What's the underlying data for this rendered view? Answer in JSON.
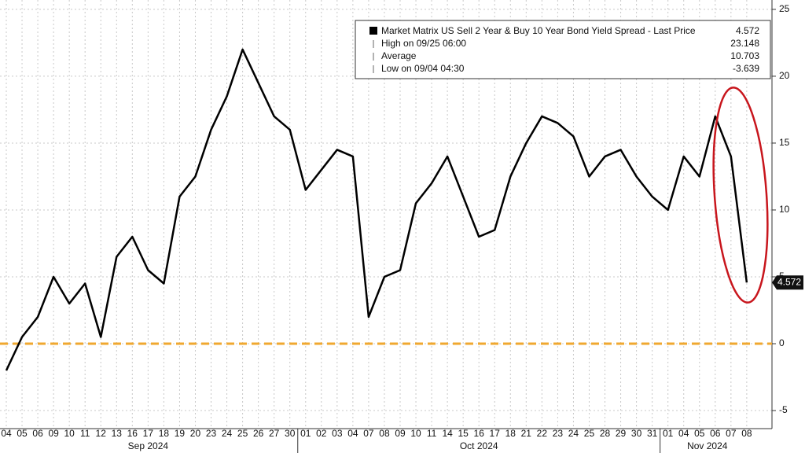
{
  "chart_data": {
    "type": "line",
    "series": [
      {
        "name": "Market Matrix US Sell 2 Year & Buy 10 Year Bond Yield Spread - Last Price",
        "color": "#000000",
        "values": [
          -2,
          0.5,
          2,
          5,
          3,
          4.5,
          0.5,
          6.5,
          8,
          5.5,
          4.5,
          11,
          12.5,
          16,
          18.5,
          22,
          19.5,
          17,
          16,
          11.5,
          13,
          14.5,
          14,
          2,
          5,
          5.5,
          10.5,
          12,
          14,
          11,
          8,
          8.5,
          12.5,
          15,
          17,
          16.5,
          15.5,
          12.5,
          14,
          14.5,
          12.5,
          11,
          10,
          14,
          12.5,
          17,
          14,
          4.572
        ]
      }
    ],
    "categories": [
      "04",
      "05",
      "06",
      "09",
      "10",
      "11",
      "12",
      "13",
      "16",
      "17",
      "18",
      "19",
      "20",
      "23",
      "24",
      "25",
      "26",
      "27",
      "30",
      "01",
      "02",
      "03",
      "04",
      "07",
      "08",
      "09",
      "10",
      "11",
      "14",
      "15",
      "16",
      "17",
      "18",
      "21",
      "22",
      "23",
      "24",
      "25",
      "28",
      "29",
      "30",
      "31",
      "01",
      "04",
      "05",
      "06",
      "07",
      "08"
    ],
    "months": [
      "Sep 2024",
      "Oct 2024",
      "Nov 2024"
    ],
    "legend": [
      {
        "label": "High on 09/25 06:00",
        "value": 23.148
      },
      {
        "label": "Average",
        "value": 10.703
      },
      {
        "label": "Low on 09/04 04:30",
        "value": -3.639
      }
    ],
    "last_price": 4.572,
    "reference_line": {
      "value": 0,
      "color": "#f0a830"
    },
    "ylim": [
      -6.35,
      25.7
    ],
    "yticks": [
      -5,
      0,
      5,
      10,
      15,
      20,
      25
    ],
    "grid": true
  }
}
